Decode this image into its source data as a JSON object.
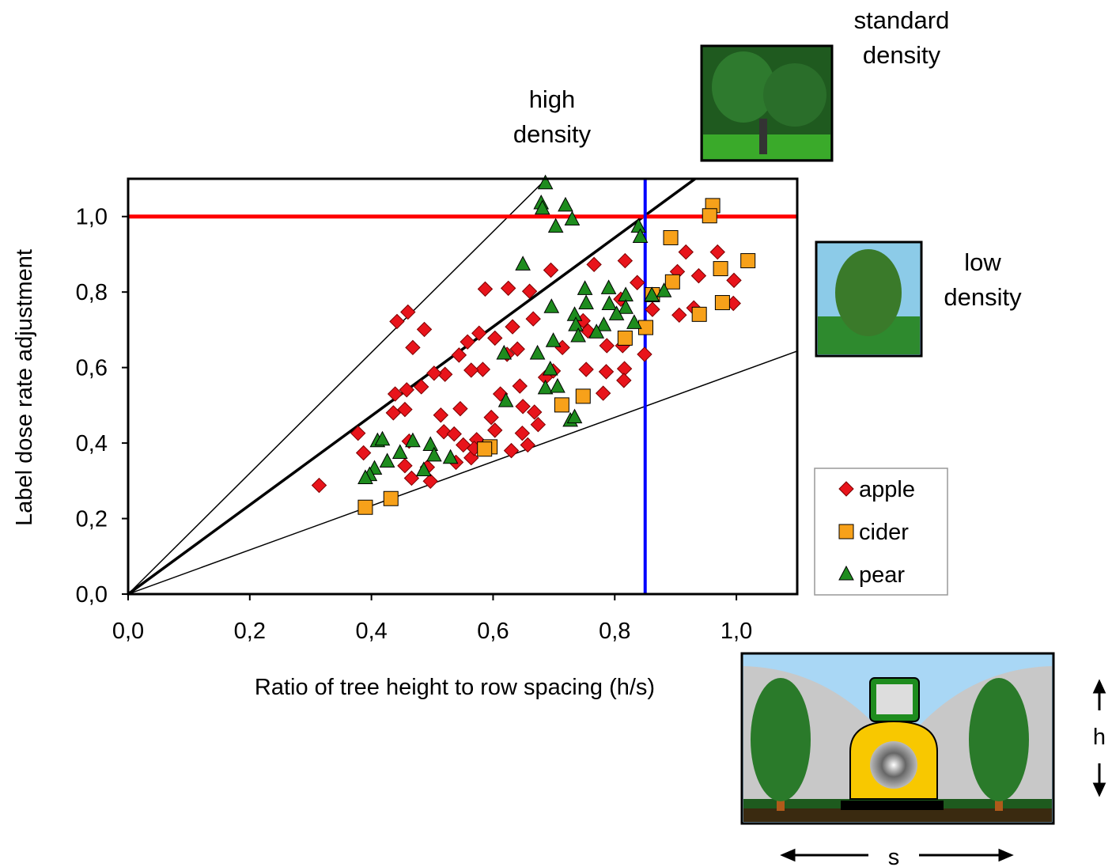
{
  "chart_data": {
    "type": "scatter",
    "xlabel": "Ratio of tree height to row spacing (h/s)",
    "ylabel": "Label dose rate adjustment",
    "xlim": [
      0,
      1.1
    ],
    "ylim": [
      0,
      1.1
    ],
    "xticks": [
      {
        "value": 0,
        "label": "0,0"
      },
      {
        "value": 0.2,
        "label": "0,2"
      },
      {
        "value": 0.4,
        "label": "0,4"
      },
      {
        "value": 0.6,
        "label": "0,6"
      },
      {
        "value": 0.8,
        "label": "0,8"
      },
      {
        "value": 1.0,
        "label": "1,0"
      }
    ],
    "yticks": [
      {
        "value": 0,
        "label": "0,0"
      },
      {
        "value": 0.2,
        "label": "0,2"
      },
      {
        "value": 0.4,
        "label": "0,4"
      },
      {
        "value": 0.6,
        "label": "0,6"
      },
      {
        "value": 0.8,
        "label": "0,8"
      },
      {
        "value": 1.0,
        "label": "1,0"
      }
    ],
    "reference_lines": [
      {
        "slope": 1.6,
        "color": "#000000"
      },
      {
        "slope": 1.18,
        "color": "#000000"
      },
      {
        "slope": 0.585,
        "color": "#000000"
      }
    ],
    "hline": {
      "value": 1.0,
      "color": "#ff0000"
    },
    "vline": {
      "value": 0.85,
      "color": "#0000ff"
    },
    "annotations": [
      "high density",
      "standard density",
      "low density",
      "h",
      "s"
    ],
    "legend": "right",
    "series": [
      {
        "name": "apple",
        "color": "#e8141b",
        "marker": "diamond",
        "x": [
          0.314,
          0.378,
          0.387,
          0.442,
          0.46,
          0.468,
          0.487,
          0.66,
          0.625,
          0.587,
          0.695,
          0.766,
          0.817,
          0.837,
          0.81,
          0.862,
          0.917,
          0.903,
          0.938,
          0.969,
          0.996,
          0.995,
          0.906,
          0.93,
          0.849,
          0.813,
          0.756,
          0.787,
          0.753,
          0.786,
          0.781,
          0.816,
          0.815,
          0.714,
          0.666,
          0.632,
          0.577,
          0.558,
          0.603,
          0.623,
          0.583,
          0.564,
          0.544,
          0.521,
          0.503,
          0.482,
          0.458,
          0.439,
          0.436,
          0.455,
          0.514,
          0.546,
          0.519,
          0.536,
          0.551,
          0.573,
          0.597,
          0.612,
          0.644,
          0.649,
          0.648,
          0.668,
          0.674,
          0.657,
          0.63,
          0.603,
          0.462,
          0.455,
          0.466,
          0.492,
          0.497,
          0.539,
          0.564,
          0.569,
          0.64,
          0.686,
          0.699,
          0.748
        ],
        "values": [
          0.288,
          0.426,
          0.374,
          0.722,
          0.747,
          0.653,
          0.701,
          0.802,
          0.81,
          0.808,
          0.858,
          0.873,
          0.883,
          0.825,
          0.781,
          0.754,
          0.906,
          0.854,
          0.843,
          0.906,
          0.831,
          0.77,
          0.739,
          0.758,
          0.635,
          0.658,
          0.697,
          0.658,
          0.595,
          0.589,
          0.532,
          0.597,
          0.566,
          0.653,
          0.729,
          0.708,
          0.691,
          0.668,
          0.678,
          0.635,
          0.595,
          0.593,
          0.633,
          0.582,
          0.585,
          0.549,
          0.541,
          0.53,
          0.48,
          0.489,
          0.474,
          0.491,
          0.43,
          0.424,
          0.395,
          0.409,
          0.468,
          0.53,
          0.551,
          0.497,
          0.426,
          0.482,
          0.449,
          0.395,
          0.38,
          0.434,
          0.405,
          0.34,
          0.307,
          0.336,
          0.299,
          0.349,
          0.361,
          0.386,
          0.649,
          0.574,
          0.591,
          0.724
        ]
      },
      {
        "name": "cider",
        "color": "#f7a11a",
        "marker": "square",
        "x": [
          0.961,
          0.956,
          0.892,
          1.019,
          0.974,
          0.895,
          0.862,
          0.977,
          0.939,
          0.851,
          0.817,
          0.748,
          0.713,
          0.595,
          0.586,
          0.432,
          0.39
        ],
        "values": [
          1.029,
          1.002,
          0.944,
          0.883,
          0.862,
          0.827,
          0.793,
          0.772,
          0.741,
          0.706,
          0.678,
          0.524,
          0.501,
          0.39,
          0.384,
          0.253,
          0.23
        ]
      },
      {
        "name": "pear",
        "color": "#1e8c1e",
        "marker": "triangle",
        "x": [
          0.686,
          0.679,
          0.681,
          0.719,
          0.73,
          0.703,
          0.839,
          0.842,
          0.649,
          0.696,
          0.751,
          0.79,
          0.818,
          0.861,
          0.881,
          0.753,
          0.791,
          0.818,
          0.803,
          0.782,
          0.832,
          0.734,
          0.736,
          0.77,
          0.74,
          0.699,
          0.673,
          0.618,
          0.694,
          0.686,
          0.706,
          0.621,
          0.727,
          0.734,
          0.497,
          0.468,
          0.447,
          0.503,
          0.41,
          0.418,
          0.426,
          0.405,
          0.397,
          0.39,
          0.486,
          0.53
        ],
        "values": [
          1.088,
          1.035,
          1.021,
          1.029,
          0.992,
          0.973,
          0.973,
          0.946,
          0.873,
          0.76,
          0.808,
          0.81,
          0.791,
          0.791,
          0.802,
          0.77,
          0.768,
          0.758,
          0.741,
          0.712,
          0.718,
          0.739,
          0.712,
          0.693,
          0.683,
          0.67,
          0.637,
          0.637,
          0.595,
          0.545,
          0.549,
          0.511,
          0.459,
          0.468,
          0.395,
          0.405,
          0.374,
          0.367,
          0.405,
          0.409,
          0.351,
          0.332,
          0.315,
          0.307,
          0.328,
          0.361
        ]
      }
    ]
  }
}
